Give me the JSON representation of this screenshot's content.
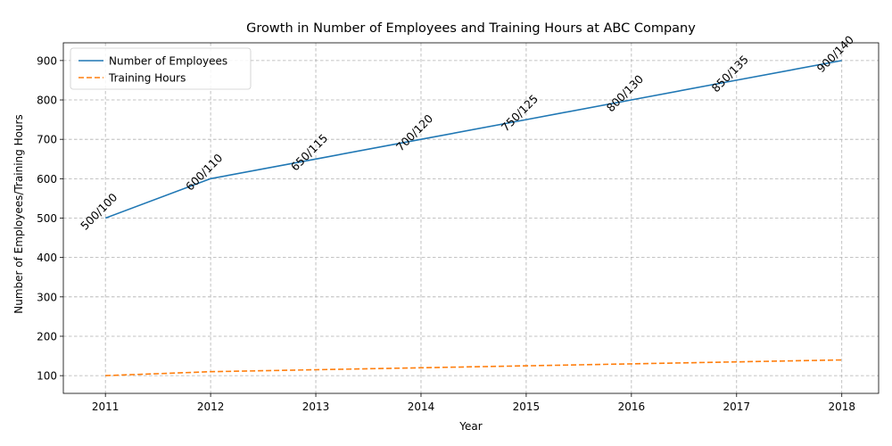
{
  "chart_data": {
    "type": "line",
    "title": "Growth in Number of Employees and Training Hours at ABC Company",
    "xlabel": "Year",
    "ylabel": "Number of Employees/Training Hours",
    "x": [
      2011,
      2012,
      2013,
      2014,
      2015,
      2016,
      2017,
      2018
    ],
    "xlim": [
      2010.6,
      2018.35
    ],
    "ylim": [
      55,
      945
    ],
    "yticks": [
      100,
      200,
      300,
      400,
      500,
      600,
      700,
      800,
      900
    ],
    "grid": true,
    "legend_position": "top-left",
    "series": [
      {
        "name": "Number of Employees",
        "values": [
          500,
          600,
          650,
          700,
          750,
          800,
          850,
          900
        ],
        "color": "#1f77b4",
        "style": "solid"
      },
      {
        "name": "Training Hours",
        "values": [
          100,
          110,
          115,
          120,
          125,
          130,
          135,
          140
        ],
        "color": "#ff7f0e",
        "style": "dashed"
      }
    ],
    "annotations": [
      "500/100",
      "600/110",
      "650/115",
      "700/120",
      "750/125",
      "800/130",
      "850/135",
      "900/140"
    ]
  }
}
